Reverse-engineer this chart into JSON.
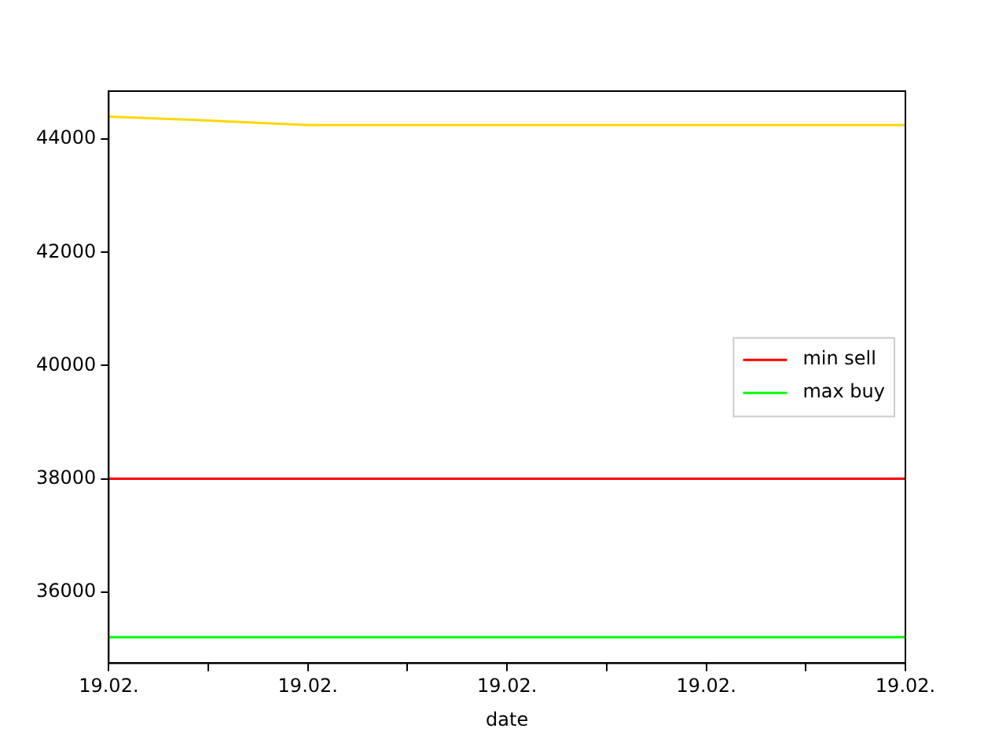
{
  "chart_data": {
    "type": "line",
    "xlabel": "date",
    "categories": [
      "19.02.",
      null,
      "19.02.",
      null,
      "19.02.",
      null,
      "19.02.",
      null,
      "19.02."
    ],
    "series": [
      {
        "name": "min sell",
        "color": "#ff0000",
        "values": [
          38000,
          38000,
          38000,
          38000,
          38000,
          38000,
          38000,
          38000,
          38000
        ]
      },
      {
        "name": "max buy",
        "color": "#00ff00",
        "values": [
          35200,
          35200,
          35200,
          35200,
          35200,
          35200,
          35200,
          35200,
          35200
        ]
      },
      {
        "color": "#ffd700",
        "values": [
          44400,
          44330,
          44250,
          44250,
          44250,
          44250,
          44250,
          44250,
          44250
        ]
      }
    ],
    "ylim": [
      34740,
      44850
    ],
    "yticks": [
      36000,
      38000,
      40000,
      42000,
      44000
    ],
    "grid": false,
    "legend": "right",
    "marker": "none",
    "line_style": "solid"
  }
}
